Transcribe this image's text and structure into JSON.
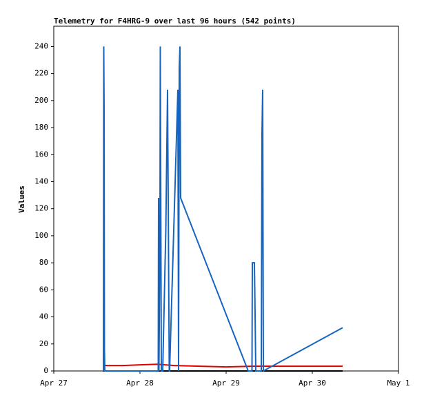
{
  "chart_data": {
    "type": "line",
    "title": "Telemetry for F4HRG-9 over last 96 hours (542 points)",
    "y_label": "Values",
    "xlim": [
      0,
      4
    ],
    "xticks": [
      {
        "value": 0,
        "label": "Apr 27"
      },
      {
        "value": 1,
        "label": "Apr 28"
      },
      {
        "value": 2,
        "label": "Apr 29"
      },
      {
        "value": 3,
        "label": "Apr 30"
      },
      {
        "value": 4,
        "label": "May 1"
      }
    ],
    "ylim": [
      0,
      255
    ],
    "yticks": [
      0,
      20,
      40,
      60,
      80,
      100,
      120,
      140,
      160,
      180,
      200,
      220,
      240
    ],
    "series": [
      {
        "color": "#000000",
        "x": [
          0.576,
          3.352
        ],
        "values": [
          0,
          0
        ]
      },
      {
        "color": "#e00000",
        "x": [
          0.576,
          0.6,
          0.8,
          1.0,
          1.2,
          1.4,
          1.7,
          2.0,
          2.3,
          2.6,
          3.0,
          3.352
        ],
        "values": [
          5,
          4,
          4,
          4.5,
          5,
          4,
          3.5,
          3,
          3.5,
          3.5,
          3.5,
          3.5
        ]
      },
      {
        "color": "#1565c0",
        "x": [
          0.576,
          0.58,
          0.584,
          0.588,
          0.592,
          1.212,
          1.216,
          1.22,
          1.232,
          1.236,
          1.248,
          1.252,
          1.264,
          1.3,
          1.32,
          1.34,
          1.344,
          1.44,
          1.448,
          1.456,
          1.464,
          1.472,
          2.256,
          2.3,
          2.304,
          2.328,
          2.336,
          2.344,
          2.408,
          2.416,
          2.424,
          2.432,
          3.352
        ],
        "values": [
          0,
          240,
          192,
          16,
          0,
          0,
          128,
          0,
          96,
          240,
          0,
          0,
          0,
          104,
          208,
          0,
          0,
          208,
          0,
          224,
          240,
          128,
          0,
          0,
          80,
          80,
          42,
          0,
          0,
          176,
          208,
          0,
          32
        ]
      }
    ]
  }
}
